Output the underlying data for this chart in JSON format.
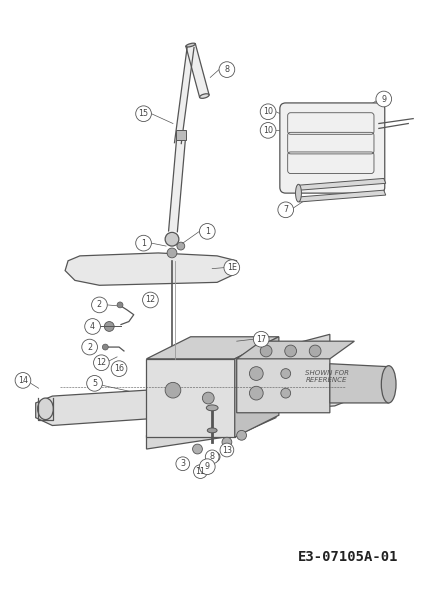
{
  "bg_color": "#ffffff",
  "line_color": "#555555",
  "label_color": "#444444",
  "fig_width": 4.24,
  "fig_height": 6.0,
  "dpi": 100,
  "part_number_text": "E3-07105A-01",
  "shown_for_ref_text": "SHOWN FOR\nREFERENCE"
}
